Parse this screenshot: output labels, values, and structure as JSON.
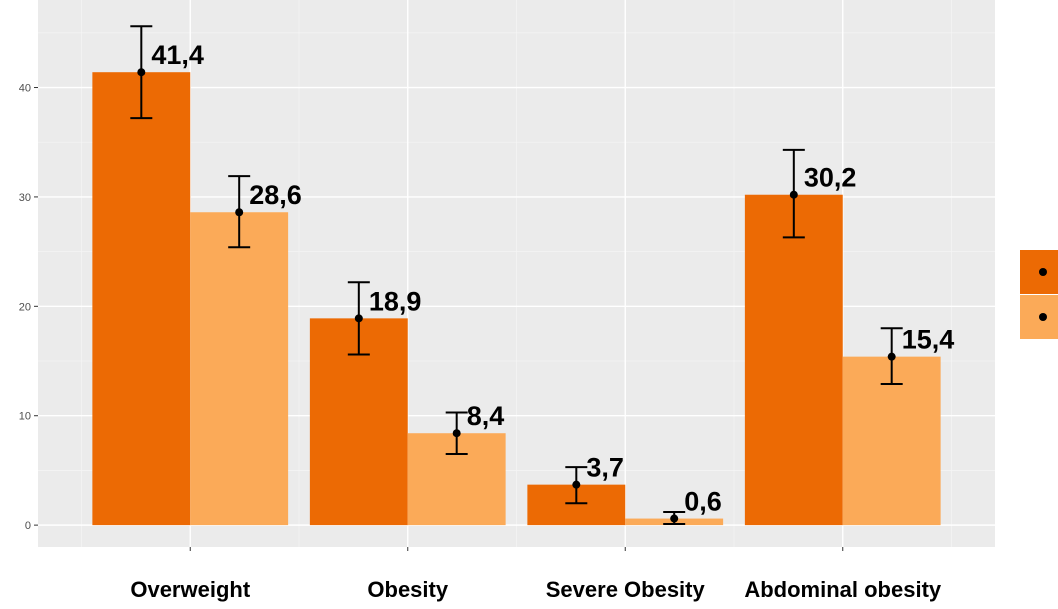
{
  "chart_data": {
    "type": "bar",
    "categories": [
      "Overweight",
      "Obesity",
      "Severe Obesity",
      "Abdominal obesity"
    ],
    "series": [
      {
        "color": "#ec6a04",
        "values": [
          41.4,
          18.9,
          3.7,
          30.2
        ],
        "labels": [
          "41,4",
          "18,9",
          "3,7",
          "30,2"
        ],
        "error_low": [
          37.2,
          15.6,
          2.0,
          26.3
        ],
        "error_high": [
          45.6,
          22.2,
          5.3,
          34.3
        ]
      },
      {
        "color": "#fbaa58",
        "values": [
          28.6,
          8.4,
          0.6,
          15.4
        ],
        "labels": [
          "28,6",
          "8,4",
          "0,6",
          "15,4"
        ],
        "error_low": [
          25.4,
          6.5,
          0.1,
          12.9
        ],
        "error_high": [
          31.9,
          10.3,
          1.2,
          18.0
        ]
      }
    ],
    "yticks": [
      "0",
      "10",
      "20",
      "30",
      "40"
    ],
    "ylim": [
      -2,
      48
    ],
    "grid": true,
    "legend": "right",
    "xlabel": "",
    "ylabel": "",
    "title": ""
  }
}
